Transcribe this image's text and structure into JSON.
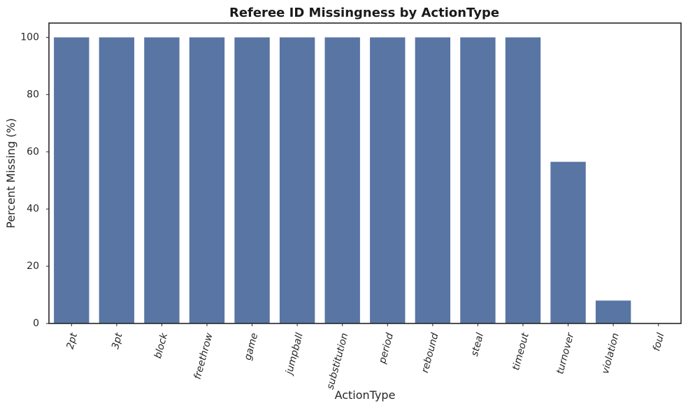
{
  "chart_data": {
    "type": "bar",
    "title": "Referee ID Missingness by ActionType",
    "xlabel": "ActionType",
    "ylabel": "Percent Missing (%)",
    "categories": [
      "2pt",
      "3pt",
      "block",
      "freethrow",
      "game",
      "jumpball",
      "substitution",
      "period",
      "rebound",
      "steal",
      "timeout",
      "turnover",
      "violation",
      "foul"
    ],
    "values": [
      100,
      100,
      100,
      100,
      100,
      100,
      100,
      100,
      100,
      100,
      100,
      56.5,
      8,
      0
    ],
    "ylim": [
      0,
      105
    ],
    "yticks": [
      0,
      20,
      40,
      60,
      80,
      100
    ],
    "grid": false,
    "bar_color": "#5875a4",
    "xtick_rotation": "-75deg"
  }
}
